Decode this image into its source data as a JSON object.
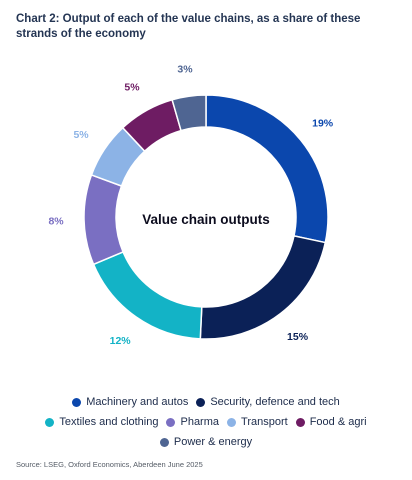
{
  "title": "Chart 2: Output of each of the value chains, as a share of these strands of the economy",
  "source": "Source: LSEG, Oxford Economics, Aberdeen June 2025",
  "chart_data": {
    "type": "pie",
    "center_label": "Value chain outputs",
    "slices": [
      {
        "label": "Machinery and autos",
        "value": 19,
        "value_label": "19%",
        "color": "#0b47ad"
      },
      {
        "label": "Security, defence and tech",
        "value": 15,
        "value_label": "15%",
        "color": "#0b2157"
      },
      {
        "label": "Textiles and clothing",
        "value": 12,
        "value_label": "12%",
        "color": "#13b3c6"
      },
      {
        "label": "Pharma",
        "value": 8,
        "value_label": "8%",
        "color": "#7a6fc2"
      },
      {
        "label": "Transport",
        "value": 5,
        "value_label": "5%",
        "color": "#8cb3e6"
      },
      {
        "label": "Food & agri",
        "value": 5,
        "value_label": "5%",
        "color": "#6e1c63"
      },
      {
        "label": "Power & energy",
        "value": 3,
        "value_label": "3%",
        "color": "#4f6592"
      }
    ],
    "legend_placement": "bottom"
  },
  "legend_rows": [
    [
      0,
      1
    ],
    [
      2,
      3,
      4,
      5
    ],
    [
      6
    ]
  ]
}
